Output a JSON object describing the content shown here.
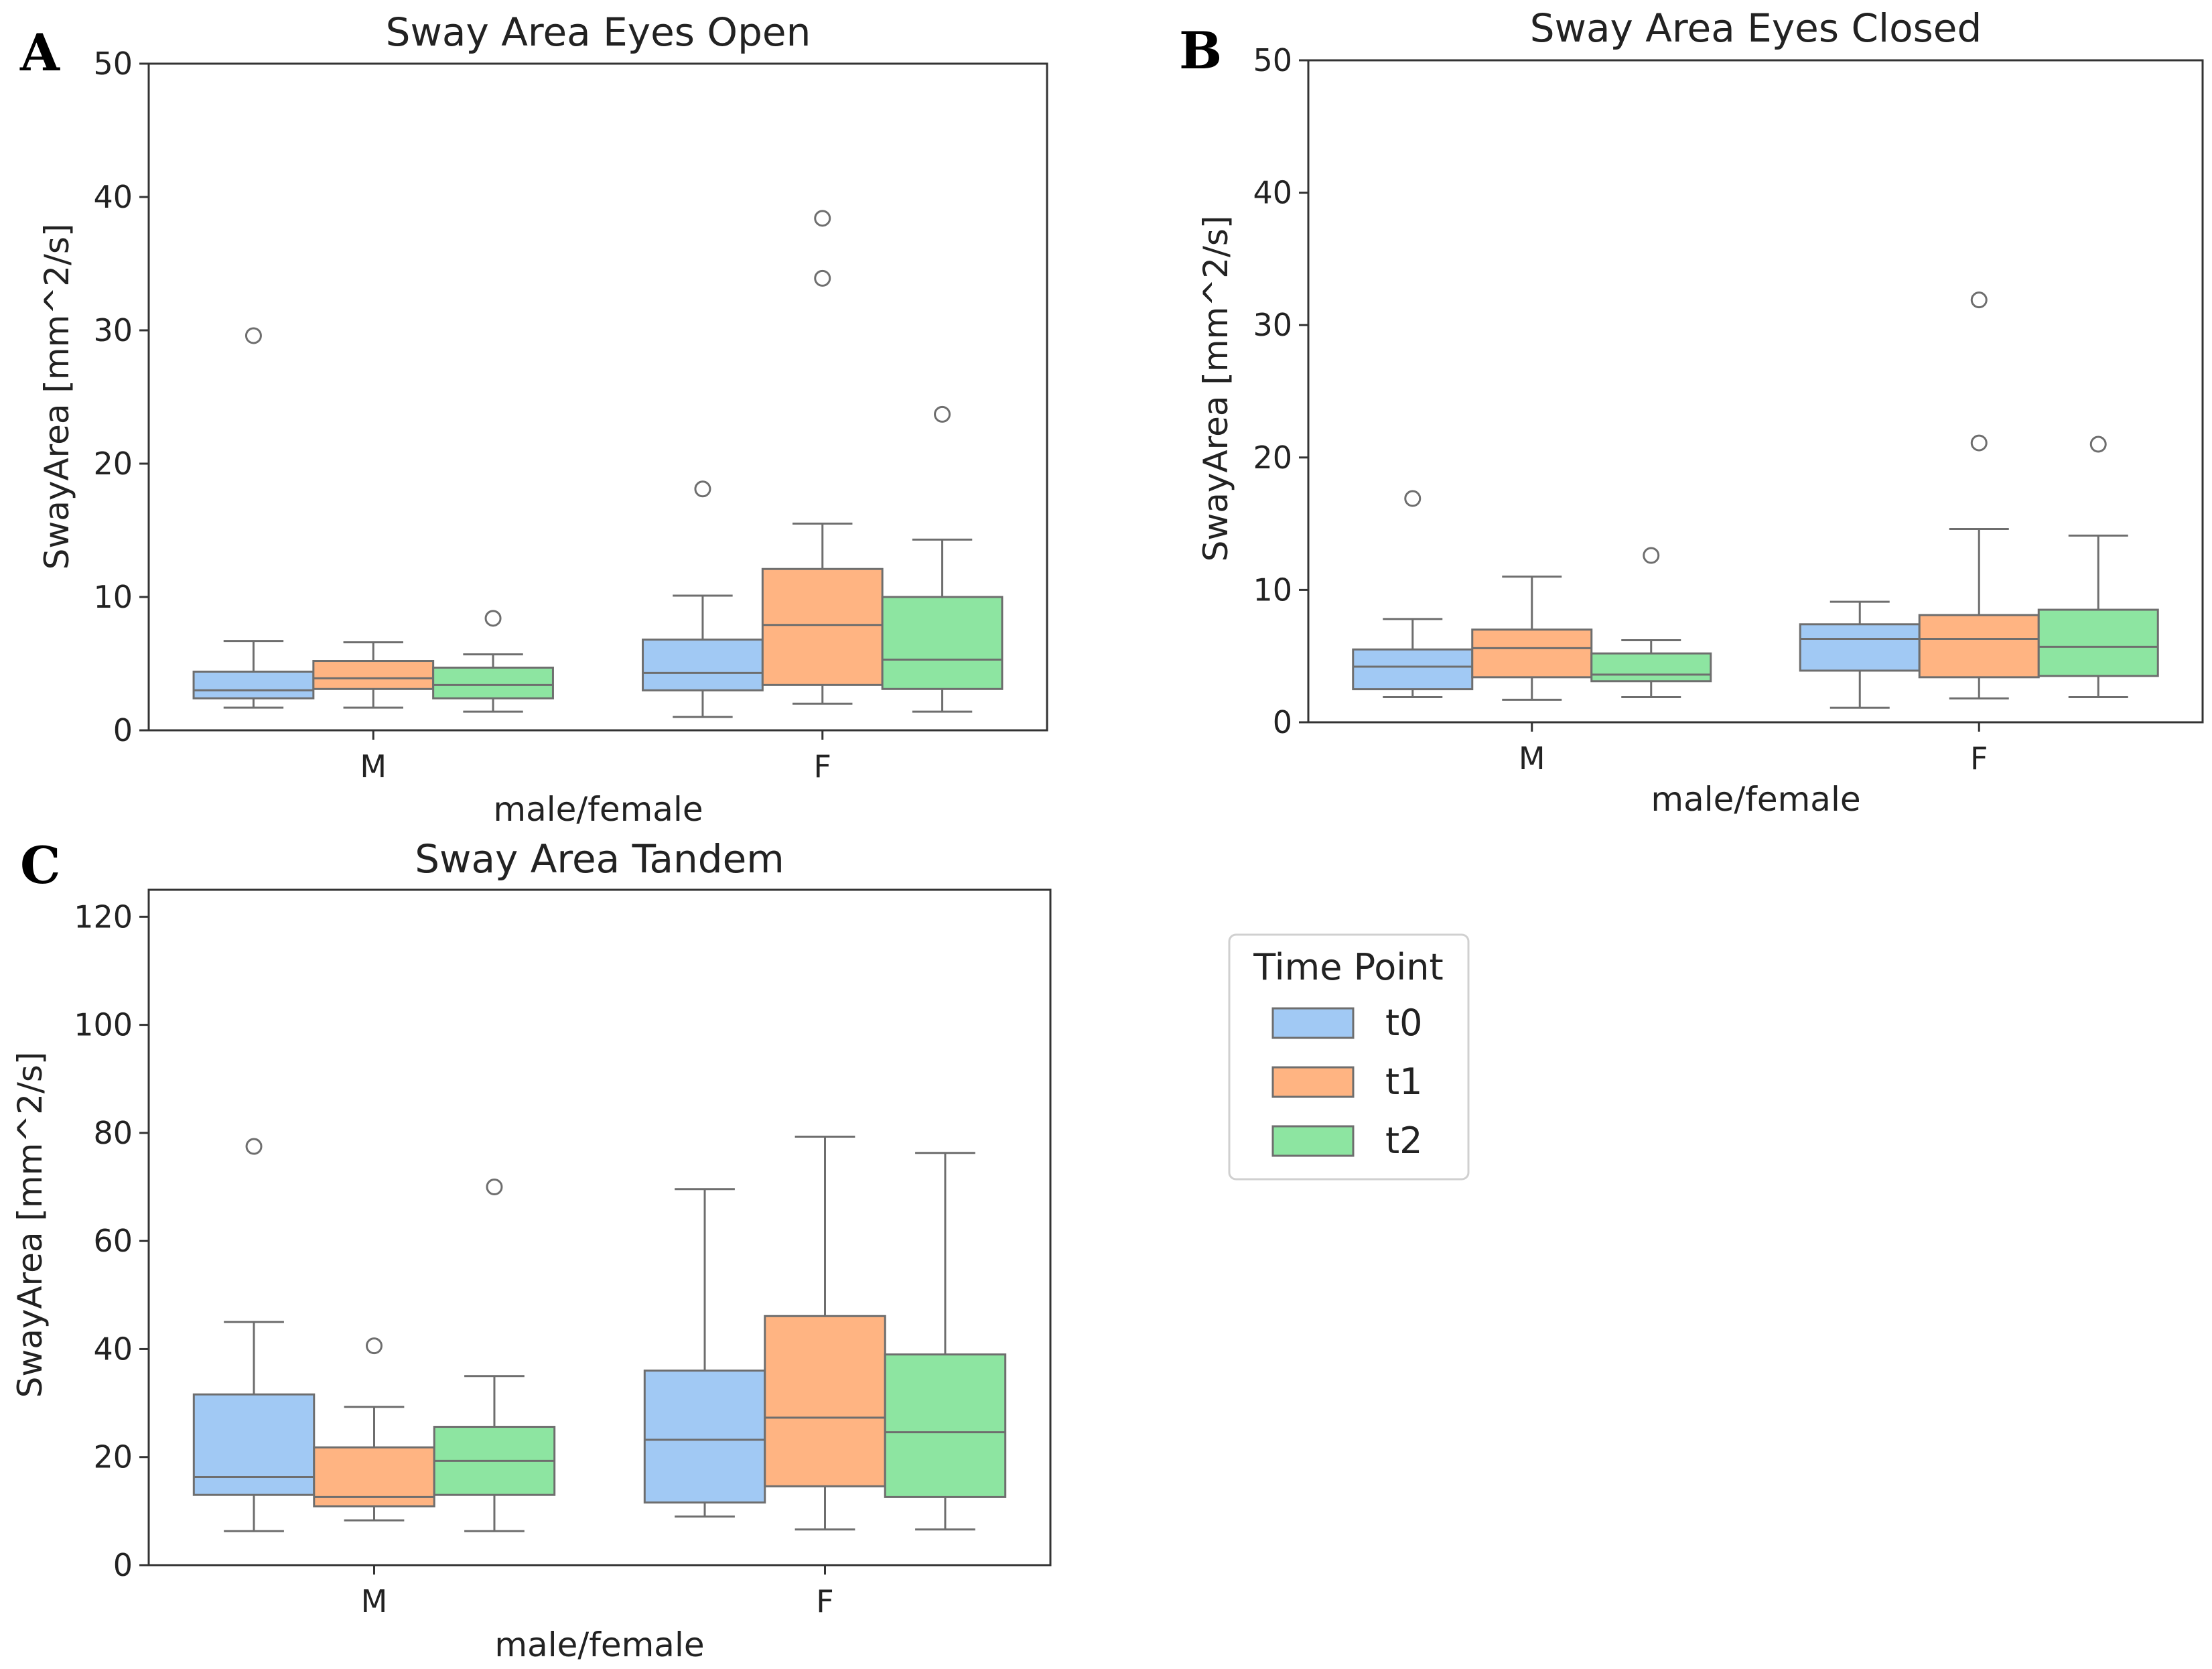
{
  "colors": {
    "t0": "#a1c9f4",
    "t1": "#ffb482",
    "t2": "#8de5a1",
    "line": "#6e6e6e",
    "frame": "#333333"
  },
  "legend": {
    "title": "Time Point",
    "entries": [
      {
        "label": "t0",
        "key": "t0"
      },
      {
        "label": "t1",
        "key": "t1"
      },
      {
        "label": "t2",
        "key": "t2"
      }
    ]
  },
  "chart_data": [
    {
      "panel": "A",
      "type": "box",
      "title": "Sway Area Eyes Open",
      "xlabel": "male/female",
      "ylabel": "SwayArea [mm^2/s]",
      "ylim": [
        0,
        50
      ],
      "yticks": [
        0,
        10,
        20,
        30,
        40,
        50
      ],
      "categories": [
        "M",
        "F"
      ],
      "series": [
        {
          "name": "t0",
          "boxes": [
            {
              "whislo": 1.7,
              "q1": 2.4,
              "med": 3.0,
              "q3": 4.4,
              "whishi": 6.7,
              "fliers": [
                29.6
              ]
            },
            {
              "whislo": 1.0,
              "q1": 3.0,
              "med": 4.3,
              "q3": 6.8,
              "whishi": 10.1,
              "fliers": [
                18.1
              ]
            }
          ]
        },
        {
          "name": "t1",
          "boxes": [
            {
              "whislo": 1.7,
              "q1": 3.1,
              "med": 3.9,
              "q3": 5.2,
              "whishi": 6.6,
              "fliers": []
            },
            {
              "whislo": 2.0,
              "q1": 3.4,
              "med": 7.9,
              "q3": 12.1,
              "whishi": 15.5,
              "fliers": [
                33.9,
                38.4
              ]
            }
          ]
        },
        {
          "name": "t2",
          "boxes": [
            {
              "whislo": 1.4,
              "q1": 2.4,
              "med": 3.4,
              "q3": 4.7,
              "whishi": 5.7,
              "fliers": [
                8.4
              ]
            },
            {
              "whislo": 1.4,
              "q1": 3.1,
              "med": 5.3,
              "q3": 10.0,
              "whishi": 14.3,
              "fliers": [
                23.7
              ]
            }
          ]
        }
      ]
    },
    {
      "panel": "B",
      "type": "box",
      "title": "Sway Area Eyes Closed",
      "xlabel": "male/female",
      "ylabel": "SwayArea [mm^2/s]",
      "ylim": [
        0,
        50
      ],
      "yticks": [
        0,
        10,
        20,
        30,
        40,
        50
      ],
      "categories": [
        "M",
        "F"
      ],
      "series": [
        {
          "name": "t0",
          "boxes": [
            {
              "whislo": 1.9,
              "q1": 2.5,
              "med": 4.2,
              "q3": 5.5,
              "whishi": 7.8,
              "fliers": [
                16.9
              ]
            },
            {
              "whislo": 1.1,
              "q1": 3.9,
              "med": 6.3,
              "q3": 7.4,
              "whishi": 9.1,
              "fliers": []
            }
          ]
        },
        {
          "name": "t1",
          "boxes": [
            {
              "whislo": 1.7,
              "q1": 3.4,
              "med": 5.6,
              "q3": 7.0,
              "whishi": 11.0,
              "fliers": []
            },
            {
              "whislo": 1.8,
              "q1": 3.4,
              "med": 6.3,
              "q3": 8.1,
              "whishi": 14.6,
              "fliers": [
                21.1,
                31.9
              ]
            }
          ]
        },
        {
          "name": "t2",
          "boxes": [
            {
              "whislo": 1.9,
              "q1": 3.1,
              "med": 3.6,
              "q3": 5.2,
              "whishi": 6.2,
              "fliers": [
                12.6
              ]
            },
            {
              "whislo": 1.9,
              "q1": 3.5,
              "med": 5.7,
              "q3": 8.5,
              "whishi": 14.1,
              "fliers": [
                21.0
              ]
            }
          ]
        }
      ]
    },
    {
      "panel": "C",
      "type": "box",
      "title": "Sway Area Tandem",
      "xlabel": "male/female",
      "ylabel": "SwayArea [mm^2/s]",
      "ylim": [
        0,
        125
      ],
      "yticks": [
        0,
        20,
        40,
        60,
        80,
        100,
        120
      ],
      "categories": [
        "M",
        "F"
      ],
      "series": [
        {
          "name": "t0",
          "boxes": [
            {
              "whislo": 6.3,
              "q1": 13.0,
              "med": 16.3,
              "q3": 31.6,
              "whishi": 45.0,
              "fliers": [
                77.5
              ]
            },
            {
              "whislo": 9.0,
              "q1": 11.6,
              "med": 23.2,
              "q3": 36.0,
              "whishi": 69.6,
              "fliers": []
            }
          ]
        },
        {
          "name": "t1",
          "boxes": [
            {
              "whislo": 8.3,
              "q1": 10.9,
              "med": 12.6,
              "q3": 21.8,
              "whishi": 29.3,
              "fliers": [
                40.6
              ]
            },
            {
              "whislo": 6.6,
              "q1": 14.6,
              "med": 27.3,
              "q3": 46.1,
              "whishi": 79.3,
              "fliers": []
            }
          ]
        },
        {
          "name": "t2",
          "boxes": [
            {
              "whislo": 6.3,
              "q1": 13.0,
              "med": 19.3,
              "q3": 25.6,
              "whishi": 35.0,
              "fliers": [
                70.0
              ]
            },
            {
              "whislo": 6.6,
              "q1": 12.6,
              "med": 24.6,
              "q3": 39.0,
              "whishi": 76.3,
              "fliers": []
            }
          ]
        }
      ]
    }
  ]
}
